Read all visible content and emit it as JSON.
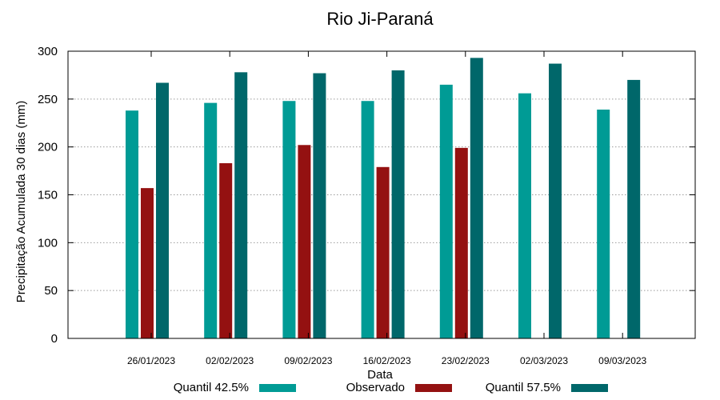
{
  "chart_data": {
    "type": "bar",
    "title": "Rio Ji-Paraná",
    "xlabel": "Data",
    "ylabel": "Precipitação Acumulada 30 dias (mm)",
    "ylim": [
      0,
      300
    ],
    "yticks": [
      0,
      50,
      100,
      150,
      200,
      250,
      300
    ],
    "grid": true,
    "categories": [
      "26/01/2023",
      "02/02/2023",
      "09/02/2023",
      "16/02/2023",
      "23/02/2023",
      "02/03/2023",
      "09/03/2023"
    ],
    "series": [
      {
        "name": "Quantil 42.5%",
        "color": "#009b95",
        "values": [
          238,
          246,
          248,
          248,
          265,
          256,
          239
        ]
      },
      {
        "name": "Observado",
        "color": "#941111",
        "values": [
          157,
          183,
          202,
          179,
          199,
          null,
          null
        ]
      },
      {
        "name": "Quantil 57.5%",
        "color": "#00676a",
        "values": [
          267,
          278,
          277,
          280,
          293,
          287,
          270
        ]
      }
    ]
  }
}
